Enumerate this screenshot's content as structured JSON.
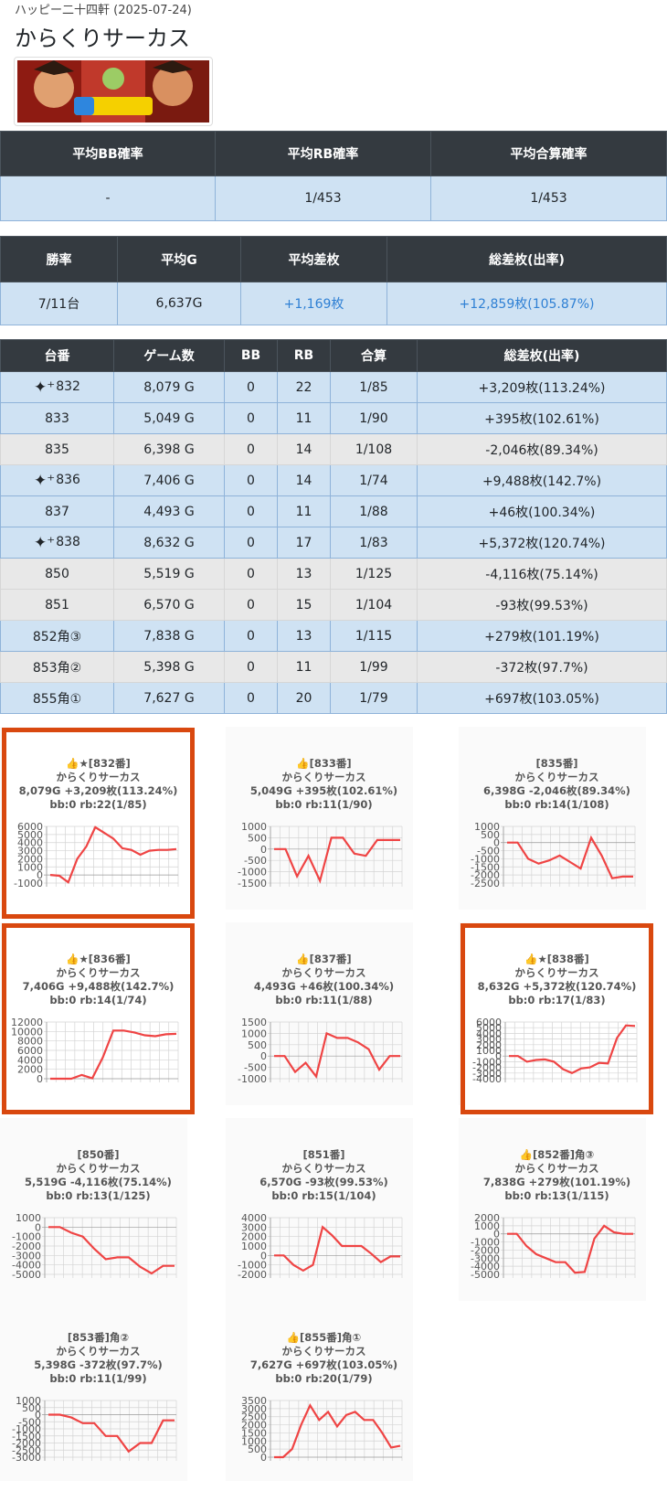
{
  "header": {
    "store_date": "ハッピー二十四軒 (2025-07-24)",
    "title": "からくりサーカス"
  },
  "summary_rates": {
    "headers": [
      "平均BB確率",
      "平均RB確率",
      "平均合算確率"
    ],
    "values": [
      "-",
      "1/453",
      "1/453"
    ]
  },
  "summary_stats": {
    "headers": [
      "勝率",
      "平均G",
      "平均差枚",
      "総差枚(出率)"
    ],
    "values": [
      "7/11台",
      "6,637G",
      "+1,169枚",
      "+12,859枚(105.87%)"
    ]
  },
  "machines": {
    "headers": [
      "台番",
      "ゲーム数",
      "BB",
      "RB",
      "合算",
      "総差枚(出率)"
    ],
    "rows": [
      {
        "no": "832",
        "star": true,
        "games": "8,079 G",
        "bb": "0",
        "rb": "22",
        "total": "1/85",
        "diff": "+3,209枚(113.24%)",
        "shade": "blue"
      },
      {
        "no": "833",
        "star": false,
        "games": "5,049 G",
        "bb": "0",
        "rb": "11",
        "total": "1/90",
        "diff": "+395枚(102.61%)",
        "shade": "blue"
      },
      {
        "no": "835",
        "star": false,
        "games": "6,398 G",
        "bb": "0",
        "rb": "14",
        "total": "1/108",
        "diff": "-2,046枚(89.34%)",
        "shade": "gray"
      },
      {
        "no": "836",
        "star": true,
        "games": "7,406 G",
        "bb": "0",
        "rb": "14",
        "total": "1/74",
        "diff": "+9,488枚(142.7%)",
        "shade": "blue"
      },
      {
        "no": "837",
        "star": false,
        "games": "4,493 G",
        "bb": "0",
        "rb": "11",
        "total": "1/88",
        "diff": "+46枚(100.34%)",
        "shade": "blue"
      },
      {
        "no": "838",
        "star": true,
        "games": "8,632 G",
        "bb": "0",
        "rb": "17",
        "total": "1/83",
        "diff": "+5,372枚(120.74%)",
        "shade": "blue"
      },
      {
        "no": "850",
        "star": false,
        "games": "5,519 G",
        "bb": "0",
        "rb": "13",
        "total": "1/125",
        "diff": "-4,116枚(75.14%)",
        "shade": "gray"
      },
      {
        "no": "851",
        "star": false,
        "games": "6,570 G",
        "bb": "0",
        "rb": "15",
        "total": "1/104",
        "diff": "-93枚(99.53%)",
        "shade": "gray"
      },
      {
        "no": "852角③",
        "star": false,
        "games": "7,838 G",
        "bb": "0",
        "rb": "13",
        "total": "1/115",
        "diff": "+279枚(101.19%)",
        "shade": "blue"
      },
      {
        "no": "853角②",
        "star": false,
        "games": "5,398 G",
        "bb": "0",
        "rb": "11",
        "total": "1/99",
        "diff": "-372枚(97.7%)",
        "shade": "gray"
      },
      {
        "no": "855角①",
        "star": false,
        "games": "7,627 G",
        "bb": "0",
        "rb": "20",
        "total": "1/79",
        "diff": "+697枚(103.05%)",
        "shade": "blue"
      }
    ]
  },
  "colors": {
    "line": "#ef4444",
    "highlight": "#d9480f",
    "header_bg": "#343a40",
    "row_blue": "#cfe2f3",
    "row_gray": "#e8e8e8",
    "accent_text": "#2f80d4"
  },
  "chart_data": [
    {
      "type": "line",
      "title": [
        "👍★[832番]",
        "からくりサーカス",
        "8,079G +3,209枚(113.24%)",
        "bb:0 rb:22(1/85)"
      ],
      "ticks": [
        6000,
        5000,
        4000,
        3000,
        2000,
        1000,
        0,
        -1000
      ],
      "ylim": [
        -1000,
        6000
      ],
      "values": [
        0,
        -100,
        -900,
        2000,
        3500,
        5900,
        5200,
        4500,
        3300,
        3100,
        2500,
        3000,
        3100,
        3100,
        3200
      ],
      "highlight": true
    },
    {
      "type": "line",
      "title": [
        "👍[833番]",
        "からくりサーカス",
        "5,049G +395枚(102.61%)",
        "bb:0 rb:11(1/90)"
      ],
      "ticks": [
        1000,
        500,
        0,
        -500,
        -1000,
        -1500
      ],
      "ylim": [
        -1500,
        1000
      ],
      "values": [
        0,
        0,
        -1200,
        -300,
        -1400,
        500,
        500,
        -200,
        -300,
        400,
        400,
        400
      ],
      "highlight": false
    },
    {
      "type": "line",
      "title": [
        "[835番]",
        "からくりサーカス",
        "6,398G -2,046枚(89.34%)",
        "bb:0 rb:14(1/108)"
      ],
      "ticks": [
        1000,
        500,
        0,
        -500,
        -1000,
        -1500,
        -2000,
        -2500
      ],
      "ylim": [
        -2500,
        1000
      ],
      "values": [
        0,
        0,
        -1000,
        -1300,
        -1100,
        -800,
        -1200,
        -1600,
        300,
        -800,
        -2200,
        -2100,
        -2100
      ],
      "highlight": false
    },
    {
      "type": "line",
      "title": [
        "👍★[836番]",
        "からくりサーカス",
        "7,406G +9,488枚(142.7%)",
        "bb:0 rb:14(1/74)"
      ],
      "ticks": [
        12000,
        10000,
        8000,
        6000,
        4000,
        2000,
        0
      ],
      "ylim": [
        0,
        12000
      ],
      "values": [
        0,
        0,
        0,
        800,
        100,
        4500,
        10200,
        10200,
        9800,
        9200,
        9000,
        9400,
        9500
      ],
      "highlight": true
    },
    {
      "type": "line",
      "title": [
        "👍[837番]",
        "からくりサーカス",
        "4,493G +46枚(100.34%)",
        "bb:0 rb:11(1/88)"
      ],
      "ticks": [
        1500,
        1000,
        500,
        0,
        -500,
        -1000
      ],
      "ylim": [
        -1000,
        1500
      ],
      "values": [
        0,
        0,
        -700,
        -300,
        -900,
        1000,
        800,
        800,
        600,
        300,
        -600,
        0,
        0
      ],
      "highlight": false
    },
    {
      "type": "line",
      "title": [
        "👍★[838番]",
        "からくりサーカス",
        "8,632G +5,372枚(120.74%)",
        "bb:0 rb:17(1/83)"
      ],
      "ticks": [
        6000,
        5000,
        4000,
        3000,
        2000,
        1000,
        0,
        -1000,
        -2000,
        -3000,
        -4000
      ],
      "ylim": [
        -4000,
        6000
      ],
      "values": [
        0,
        0,
        -1000,
        -700,
        -600,
        -1000,
        -2300,
        -3000,
        -2200,
        -2000,
        -1200,
        -1300,
        3200,
        5400,
        5300
      ],
      "highlight": true
    },
    {
      "type": "line",
      "title": [
        "[850番]",
        "からくりサーカス",
        "5,519G -4,116枚(75.14%)",
        "bb:0 rb:13(1/125)"
      ],
      "ticks": [
        1000,
        0,
        -1000,
        -2000,
        -3000,
        -4000,
        -5000
      ],
      "ylim": [
        -5000,
        1000
      ],
      "values": [
        0,
        0,
        -600,
        -1000,
        -2300,
        -3400,
        -3200,
        -3200,
        -4200,
        -4900,
        -4100,
        -4100
      ],
      "highlight": false
    },
    {
      "type": "line",
      "title": [
        "[851番]",
        "からくりサーカス",
        "6,570G -93枚(99.53%)",
        "bb:0 rb:15(1/104)"
      ],
      "ticks": [
        4000,
        3000,
        2000,
        1000,
        0,
        -1000,
        -2000
      ],
      "ylim": [
        -2000,
        4000
      ],
      "values": [
        0,
        0,
        -1000,
        -1600,
        -1000,
        3000,
        2100,
        1000,
        1000,
        1000,
        200,
        -700,
        -100,
        -100
      ],
      "highlight": false
    },
    {
      "type": "line",
      "title": [
        "👍[852番]角③",
        "からくりサーカス",
        "7,838G +279枚(101.19%)",
        "bb:0 rb:13(1/115)"
      ],
      "ticks": [
        2000,
        1000,
        0,
        -1000,
        -2000,
        -3000,
        -4000,
        -5000
      ],
      "ylim": [
        -5000,
        2000
      ],
      "values": [
        0,
        0,
        -1500,
        -2500,
        -3000,
        -3500,
        -3500,
        -4800,
        -4700,
        -600,
        1000,
        200,
        0,
        0
      ],
      "highlight": false
    },
    {
      "type": "line",
      "title": [
        "[853番]角②",
        "からくりサーカス",
        "5,398G -372枚(97.7%)",
        "bb:0 rb:11(1/99)"
      ],
      "ticks": [
        1000,
        500,
        0,
        -500,
        -1000,
        -1500,
        -2000,
        -2500,
        -3000
      ],
      "ylim": [
        -3000,
        1000
      ],
      "values": [
        0,
        0,
        -200,
        -600,
        -600,
        -1500,
        -1500,
        -2600,
        -2000,
        -2000,
        -400,
        -400
      ],
      "highlight": false
    },
    {
      "type": "line",
      "title": [
        "👍[855番]角①",
        "からくりサーカス",
        "7,627G +697枚(103.05%)",
        "bb:0 rb:20(1/79)"
      ],
      "ticks": [
        3500,
        3000,
        2500,
        2000,
        1500,
        1000,
        500,
        0
      ],
      "ylim": [
        0,
        3500
      ],
      "values": [
        0,
        0,
        500,
        2000,
        3200,
        2300,
        2800,
        1900,
        2600,
        2800,
        2300,
        2300,
        1500,
        600,
        700
      ],
      "highlight": false
    }
  ]
}
